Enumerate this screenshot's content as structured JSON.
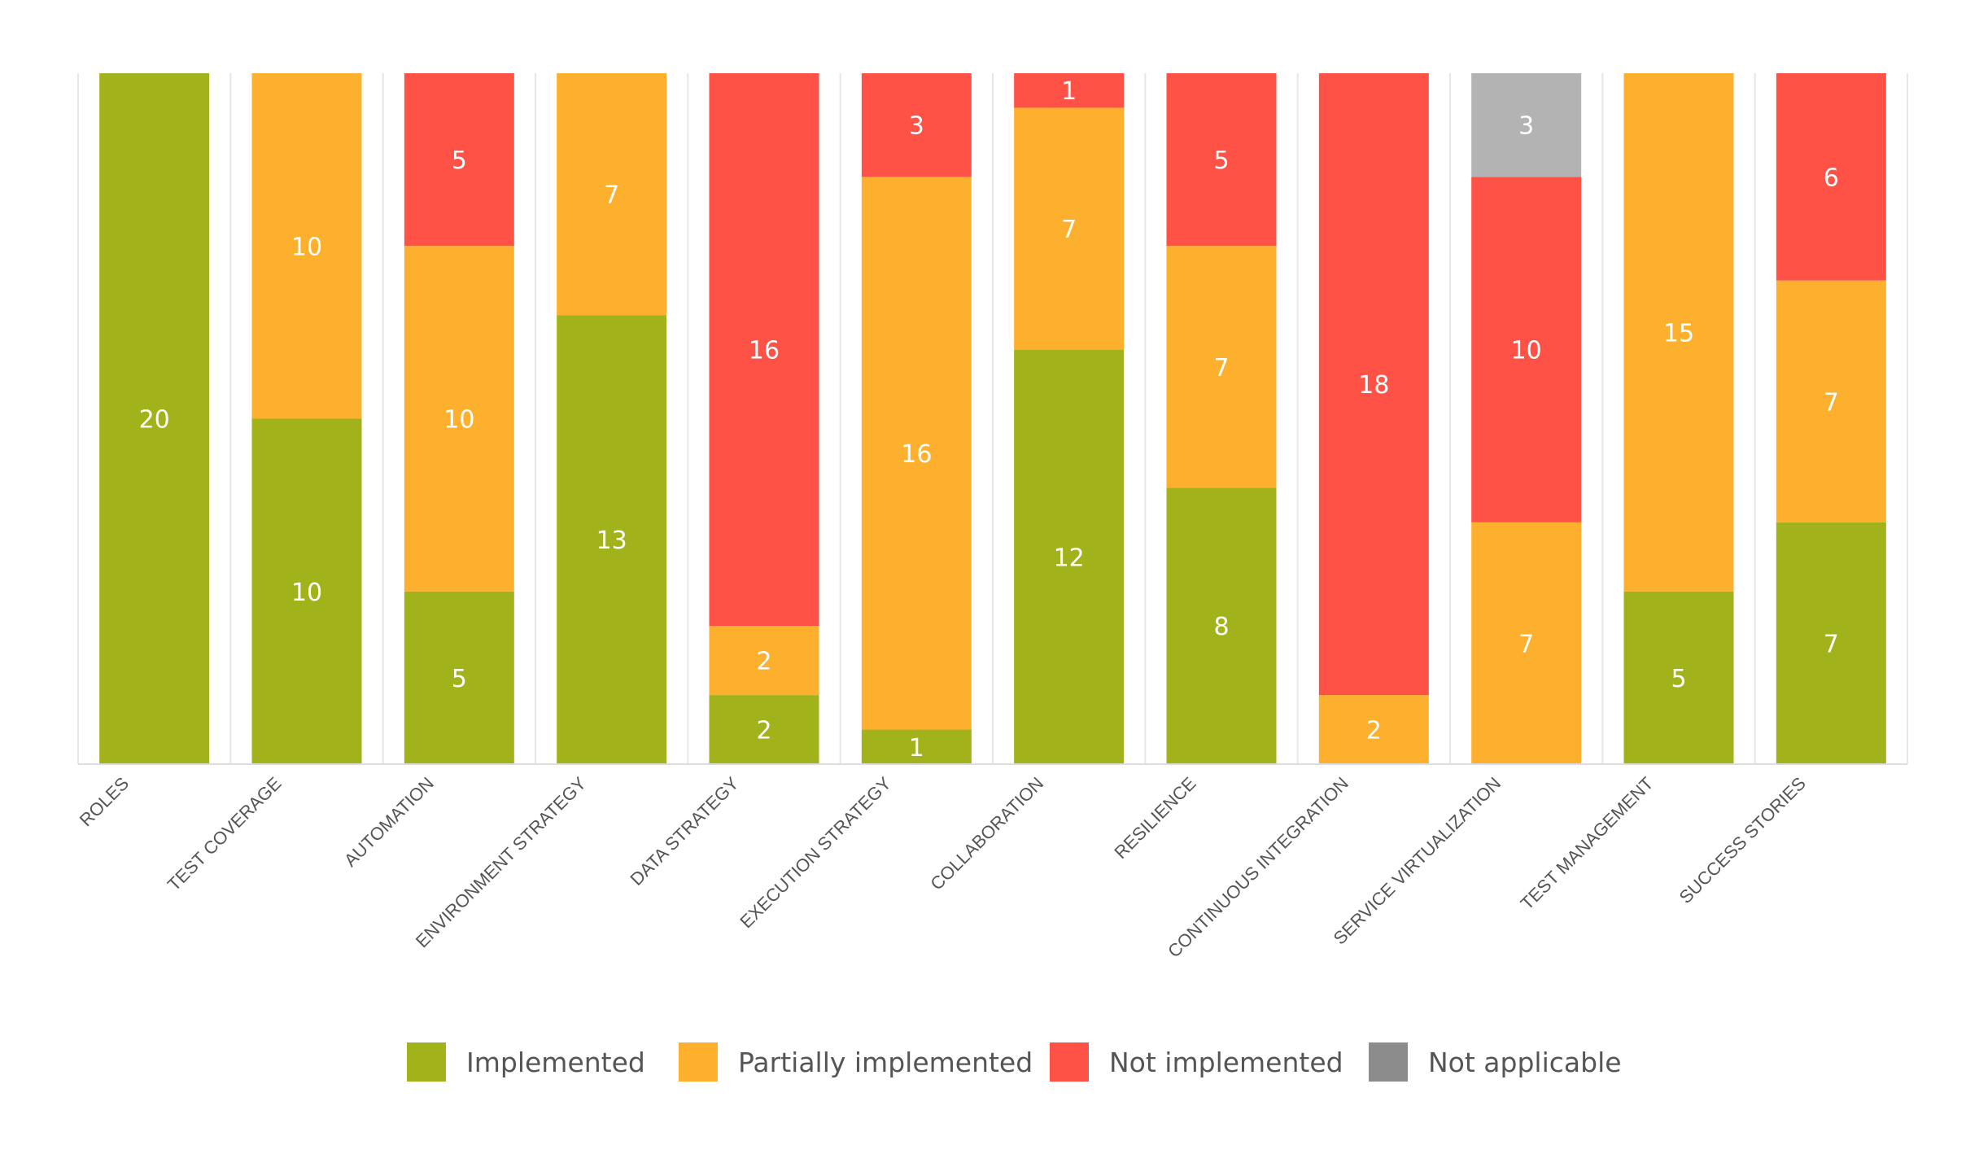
{
  "chart_data": {
    "type": "bar",
    "stacked": true,
    "categories": [
      "ROLES",
      "TEST COVERAGE",
      "AUTOMATION",
      "ENVIRONMENT STRATEGY",
      "DATA STRATEGY",
      "EXECUTION STRATEGY",
      "COLLABORATION",
      "RESILIENCE",
      "CONTINUOUS INTEGRATION",
      "SERVICE VIRTUALIZATION",
      "TEST MANAGEMENT",
      "SUCCESS STORIES"
    ],
    "series": [
      {
        "name": "Implemented",
        "color": "#a2b21a",
        "values": [
          20,
          10,
          5,
          13,
          2,
          1,
          12,
          8,
          0,
          0,
          5,
          7
        ]
      },
      {
        "name": "Partially implemented",
        "color": "#fdb02d",
        "values": [
          0,
          10,
          10,
          7,
          2,
          16,
          7,
          7,
          2,
          7,
          15,
          7
        ]
      },
      {
        "name": "Not implemented",
        "color": "#fe5246",
        "values": [
          0,
          0,
          5,
          0,
          16,
          3,
          1,
          5,
          18,
          10,
          0,
          6
        ]
      },
      {
        "name": "Not applicable",
        "color": "#b3b3b3",
        "values": [
          0,
          0,
          0,
          0,
          0,
          0,
          0,
          0,
          0,
          3,
          0,
          0
        ]
      }
    ],
    "legend_marker_colors": [
      "#a2b21a",
      "#fdb02d",
      "#fe5246",
      "#8c8c8c"
    ],
    "ylim": [
      0,
      20
    ],
    "y_axis_visible": false,
    "legend_position": "bottom-center",
    "title": "",
    "xlabel": "",
    "ylabel": ""
  }
}
